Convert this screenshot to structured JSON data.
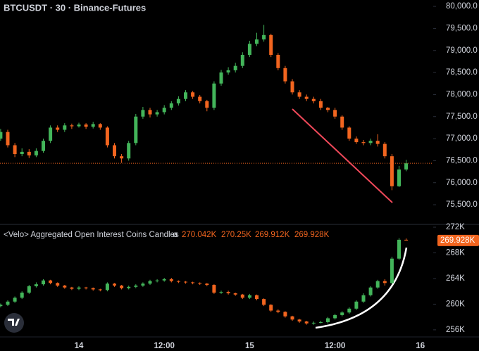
{
  "chart_data": [
    {
      "type": "candlestick",
      "title": "BTCUSDT · 30 · Binance-Futures",
      "categories": [
        null,
        null,
        null,
        null,
        null,
        null,
        null,
        null,
        null,
        null,
        null,
        "14",
        null,
        null,
        null,
        null,
        null,
        null,
        null,
        null,
        null,
        null,
        null,
        "12:00",
        null,
        null,
        null,
        null,
        null,
        null,
        null,
        null,
        null,
        null,
        null,
        "15",
        null,
        null,
        null,
        null,
        null,
        null,
        null,
        null,
        null,
        null,
        null,
        "12:00",
        null,
        null,
        null,
        null,
        null,
        null,
        null,
        null,
        null,
        null,
        null,
        "16"
      ],
      "open": [
        77000,
        77150,
        76850,
        76650,
        76700,
        76620,
        76720,
        76950,
        77250,
        77200,
        77300,
        77280,
        77320,
        77270,
        77330,
        77250,
        76850,
        76600,
        76550,
        76900,
        77500,
        77650,
        77550,
        77600,
        77700,
        77800,
        77900,
        78050,
        77950,
        77850,
        77700,
        78250,
        78500,
        78550,
        78650,
        78900,
        79150,
        79250,
        79350,
        78900,
        78600,
        78300,
        78050,
        77950,
        77900,
        77850,
        77700,
        77650,
        77500,
        77250,
        77000,
        76920,
        76900,
        76950,
        76880,
        76600,
        75920,
        76300,
        null,
        null
      ],
      "high": [
        77220,
        77200,
        76900,
        76780,
        76760,
        76780,
        77000,
        77300,
        77300,
        77350,
        77340,
        77360,
        77350,
        77380,
        77350,
        77280,
        76900,
        76650,
        76950,
        77560,
        77720,
        77700,
        77650,
        77760,
        77850,
        77960,
        78100,
        78080,
        77990,
        77880,
        78300,
        78560,
        78620,
        78720,
        78960,
        79220,
        79400,
        79580,
        79380,
        78940,
        78650,
        78350,
        78100,
        78000,
        77950,
        77900,
        77720,
        77700,
        77530,
        77280,
        77050,
        76970,
        77000,
        77100,
        76920,
        76650,
        76380,
        76520,
        null,
        null
      ],
      "low": [
        76950,
        76800,
        76580,
        76600,
        76560,
        76580,
        76680,
        76900,
        77150,
        77150,
        77220,
        77250,
        77220,
        77230,
        77200,
        76800,
        76550,
        76450,
        76500,
        76850,
        77450,
        77480,
        77500,
        77550,
        77650,
        77750,
        77850,
        77900,
        77800,
        77620,
        77650,
        78200,
        78450,
        78500,
        78600,
        78850,
        79100,
        79200,
        78850,
        78550,
        78250,
        78000,
        77900,
        77850,
        77800,
        77650,
        77600,
        77450,
        77200,
        76950,
        76880,
        76850,
        76850,
        76820,
        76550,
        75830,
        75900,
        76260,
        null,
        null
      ],
      "close": [
        77150,
        76850,
        76650,
        76700,
        76620,
        76720,
        76950,
        77250,
        77200,
        77300,
        77280,
        77320,
        77270,
        77330,
        77250,
        76850,
        76600,
        76550,
        76900,
        77500,
        77650,
        77550,
        77600,
        77700,
        77800,
        77900,
        78050,
        77950,
        77850,
        77700,
        78250,
        78500,
        78550,
        78650,
        78900,
        79150,
        79250,
        79350,
        78900,
        78600,
        78300,
        78050,
        77950,
        77900,
        77850,
        77700,
        77650,
        77500,
        77250,
        77000,
        76920,
        76900,
        76950,
        76880,
        76600,
        75920,
        76300,
        76440,
        null,
        null
      ],
      "up_color": "#43b55a",
      "down_color": "#f2651f",
      "ylim": [
        75070,
        80145
      ],
      "yticks": [
        {
          "value": 80000,
          "label": "80,000.0"
        },
        {
          "value": 79500,
          "label": "79,500.0"
        },
        {
          "value": 79000,
          "label": "79,000.0"
        },
        {
          "value": 78500,
          "label": "78,500.0"
        },
        {
          "value": 78000,
          "label": "78,000.0"
        },
        {
          "value": 77500,
          "label": "77,500.0"
        },
        {
          "value": 77000,
          "label": "77,000.0"
        },
        {
          "value": 76500,
          "label": "76,500.0"
        },
        {
          "value": 76000,
          "label": "76,000.0"
        },
        {
          "value": 75500,
          "label": "75,500.0"
        }
      ]
    },
    {
      "type": "candlestick",
      "title": "<Velo> Aggregated Open Interest Coins Candles",
      "symbol": "ø",
      "ohlc_labels": [
        "270.042K",
        "270.25K",
        "269.912K",
        "269.928K"
      ],
      "open": [
        259.7,
        259.9,
        260.4,
        261.0,
        261.8,
        262.8,
        263.1,
        263.7,
        263.3,
        262.9,
        262.6,
        262.4,
        262.6,
        262.5,
        262.3,
        262.2,
        263.2,
        262.9,
        262.5,
        262.7,
        262.9,
        263.2,
        263.6,
        263.7,
        263.9,
        263.6,
        263.5,
        263.4,
        263.3,
        263.2,
        263.0,
        261.8,
        261.9,
        261.7,
        261.5,
        261.0,
        261.4,
        260.8,
        259.9,
        259.0,
        258.8,
        258.1,
        257.6,
        257.3,
        257.0,
        257.1,
        257.2,
        257.8,
        258.3,
        258.7,
        259.3,
        260.4,
        261.4,
        262.6,
        263.6,
        263.3,
        267.1,
        270.042,
        null,
        null
      ],
      "high": [
        260.1,
        260.6,
        261.2,
        262.0,
        263.0,
        263.4,
        263.9,
        263.8,
        263.4,
        263.0,
        262.7,
        262.8,
        262.7,
        262.6,
        262.4,
        263.4,
        263.3,
        263.0,
        262.9,
        263.1,
        263.4,
        263.8,
        263.9,
        264.1,
        264.1,
        263.7,
        263.6,
        263.5,
        263.4,
        263.3,
        263.1,
        262.1,
        262.1,
        261.8,
        261.6,
        261.6,
        261.5,
        260.9,
        260.0,
        259.2,
        258.9,
        258.2,
        257.7,
        257.4,
        257.3,
        257.4,
        258.0,
        258.5,
        258.9,
        259.5,
        260.6,
        261.7,
        262.8,
        263.8,
        263.9,
        267.4,
        270.3,
        270.25,
        null,
        null
      ],
      "low": [
        259.5,
        259.7,
        260.2,
        260.8,
        261.6,
        262.6,
        262.9,
        263.1,
        262.7,
        262.4,
        262.2,
        262.2,
        262.3,
        262.1,
        262.0,
        262.0,
        262.7,
        262.3,
        262.3,
        262.5,
        262.7,
        263.0,
        263.4,
        263.5,
        263.4,
        263.3,
        263.2,
        263.1,
        263.0,
        262.8,
        261.6,
        261.6,
        261.5,
        261.3,
        260.8,
        260.8,
        260.6,
        259.7,
        258.8,
        258.6,
        257.9,
        257.4,
        257.1,
        256.8,
        256.8,
        257.0,
        257.0,
        257.6,
        258.1,
        258.5,
        259.1,
        260.2,
        261.2,
        262.4,
        262.9,
        263.1,
        266.9,
        269.912,
        null,
        null
      ],
      "close": [
        259.9,
        260.4,
        261.0,
        261.8,
        262.8,
        263.1,
        263.7,
        263.3,
        262.9,
        262.6,
        262.4,
        262.6,
        262.5,
        262.3,
        262.2,
        263.2,
        262.9,
        262.5,
        262.7,
        262.9,
        263.2,
        263.6,
        263.7,
        263.9,
        263.6,
        263.5,
        263.4,
        263.3,
        263.2,
        263.0,
        261.8,
        261.9,
        261.7,
        261.5,
        261.0,
        261.4,
        260.8,
        259.9,
        259.0,
        258.8,
        258.1,
        257.6,
        257.3,
        257.0,
        257.1,
        257.2,
        257.8,
        258.3,
        258.7,
        259.3,
        260.4,
        261.4,
        262.6,
        263.6,
        263.3,
        267.1,
        270.042,
        269.928,
        null,
        null
      ],
      "up_color": "#43b55a",
      "down_color": "#f2651f",
      "ylim": [
        255.0,
        272.55
      ],
      "yticks": [
        {
          "value": 272,
          "label": "272K"
        },
        {
          "value": 268,
          "label": "268K"
        },
        {
          "value": 264,
          "label": "264K"
        },
        {
          "value": 260,
          "label": "260K"
        },
        {
          "value": 256,
          "label": "256K"
        }
      ]
    }
  ]
}
